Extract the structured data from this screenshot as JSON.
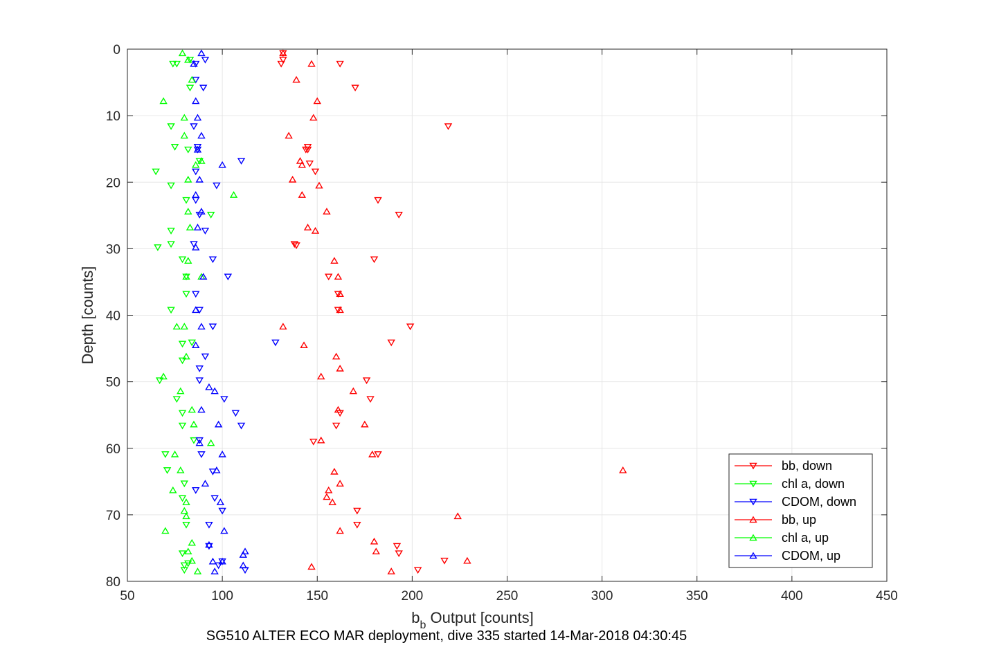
{
  "chart_data": {
    "type": "scatter",
    "xlabel_main": "b",
    "xlabel_sub": "b",
    "xlabel_rest": " Output [counts]",
    "ylabel": "Depth [counts]",
    "caption": "SG510 ALTER ECO MAR deployment, dive 335 started 14-Mar-2018 04:30:45",
    "xlim": [
      50,
      450
    ],
    "ylim": [
      0,
      80
    ],
    "y_reversed": true,
    "grid": true,
    "legend_position": "bottom-right",
    "xticks": [
      "50",
      "100",
      "150",
      "200",
      "250",
      "300",
      "350",
      "400",
      "450"
    ],
    "yticks": [
      "0",
      "10",
      "20",
      "30",
      "40",
      "50",
      "60",
      "70",
      "80"
    ],
    "series": [
      {
        "name": "bb, down",
        "color": "#ff0000",
        "marker": "triangle-down",
        "points": [
          [
            132,
            0.6
          ],
          [
            132,
            1.6
          ],
          [
            131,
            2.2
          ],
          [
            162,
            2.2
          ],
          [
            170,
            5.8
          ],
          [
            219,
            11.6
          ],
          [
            145,
            14.7
          ],
          [
            145,
            15.1
          ],
          [
            144,
            15.1
          ],
          [
            149,
            18.4
          ],
          [
            146,
            17.2
          ],
          [
            182,
            22.7
          ],
          [
            193,
            24.9
          ],
          [
            138,
            29.3
          ],
          [
            139,
            29.5
          ],
          [
            180,
            31.6
          ],
          [
            156,
            34.2
          ],
          [
            161,
            36.8
          ],
          [
            161,
            39.2
          ],
          [
            199,
            41.7
          ],
          [
            189,
            44.1
          ],
          [
            176,
            49.8
          ],
          [
            178,
            52.6
          ],
          [
            162,
            54.7
          ],
          [
            160,
            56.6
          ],
          [
            148,
            59.0
          ],
          [
            182,
            60.9
          ],
          [
            171,
            69.4
          ],
          [
            171,
            71.5
          ],
          [
            192,
            74.7
          ],
          [
            193,
            75.8
          ],
          [
            217,
            76.9
          ],
          [
            203,
            78.3
          ]
        ]
      },
      {
        "name": "chl a, down",
        "color": "#00ff00",
        "marker": "triangle-down",
        "points": [
          [
            83,
            1.6
          ],
          [
            74,
            2.2
          ],
          [
            76,
            2.2
          ],
          [
            83,
            5.8
          ],
          [
            73,
            11.6
          ],
          [
            75,
            14.7
          ],
          [
            82,
            15.1
          ],
          [
            88,
            16.8
          ],
          [
            65,
            18.4
          ],
          [
            73,
            20.5
          ],
          [
            81,
            22.7
          ],
          [
            94,
            24.9
          ],
          [
            73,
            27.3
          ],
          [
            73,
            29.3
          ],
          [
            66,
            29.8
          ],
          [
            79,
            31.6
          ],
          [
            81,
            34.2
          ],
          [
            81,
            36.8
          ],
          [
            73,
            39.2
          ],
          [
            84,
            44.1
          ],
          [
            79,
            44.3
          ],
          [
            79,
            46.8
          ],
          [
            67,
            49.8
          ],
          [
            76,
            52.6
          ],
          [
            79,
            54.7
          ],
          [
            79,
            56.6
          ],
          [
            85,
            58.8
          ],
          [
            70,
            60.9
          ],
          [
            71,
            63.3
          ],
          [
            80,
            65.3
          ],
          [
            79,
            67.5
          ],
          [
            81,
            71.5
          ],
          [
            79,
            75.8
          ],
          [
            82,
            77.3
          ],
          [
            80,
            77.6
          ],
          [
            80,
            78.3
          ]
        ]
      },
      {
        "name": "CDOM, down",
        "color": "#0000ff",
        "marker": "triangle-down",
        "points": [
          [
            91,
            1.6
          ],
          [
            86,
            2.2
          ],
          [
            86,
            4.6
          ],
          [
            90,
            5.8
          ],
          [
            85,
            11.6
          ],
          [
            87,
            14.7
          ],
          [
            87,
            15.1
          ],
          [
            110,
            16.8
          ],
          [
            86,
            18.4
          ],
          [
            97,
            20.5
          ],
          [
            86,
            22.7
          ],
          [
            88,
            24.9
          ],
          [
            91,
            27.3
          ],
          [
            85,
            29.3
          ],
          [
            95,
            31.6
          ],
          [
            103,
            34.2
          ],
          [
            86,
            36.8
          ],
          [
            88,
            39.2
          ],
          [
            95,
            41.7
          ],
          [
            128,
            44.1
          ],
          [
            91,
            46.2
          ],
          [
            88,
            48.0
          ],
          [
            88,
            49.8
          ],
          [
            101,
            52.6
          ],
          [
            107,
            54.7
          ],
          [
            110,
            56.6
          ],
          [
            88,
            58.8
          ],
          [
            89,
            60.9
          ],
          [
            95,
            63.5
          ],
          [
            86,
            66.3
          ],
          [
            96,
            67.5
          ],
          [
            100,
            69.4
          ],
          [
            93,
            71.5
          ],
          [
            93,
            74.7
          ],
          [
            100,
            77.0
          ],
          [
            98,
            77.6
          ],
          [
            112,
            78.3
          ]
        ]
      },
      {
        "name": "bb, up",
        "color": "#ff0000",
        "marker": "triangle-up",
        "points": [
          [
            132,
            0.6
          ],
          [
            147,
            2.2
          ],
          [
            139,
            4.6
          ],
          [
            150,
            7.8
          ],
          [
            148,
            10.3
          ],
          [
            135,
            13.0
          ],
          [
            141,
            16.8
          ],
          [
            142,
            17.4
          ],
          [
            137,
            19.6
          ],
          [
            151,
            20.5
          ],
          [
            142,
            21.9
          ],
          [
            155,
            24.4
          ],
          [
            145,
            26.8
          ],
          [
            149,
            27.3
          ],
          [
            159,
            31.8
          ],
          [
            161,
            34.2
          ],
          [
            162,
            36.8
          ],
          [
            162,
            39.2
          ],
          [
            132,
            41.7
          ],
          [
            143,
            44.5
          ],
          [
            160,
            46.2
          ],
          [
            162,
            48.0
          ],
          [
            152,
            49.2
          ],
          [
            169,
            51.4
          ],
          [
            161,
            54.2
          ],
          [
            175,
            56.4
          ],
          [
            152,
            58.8
          ],
          [
            179,
            60.9
          ],
          [
            311,
            63.3
          ],
          [
            159,
            63.5
          ],
          [
            162,
            65.3
          ],
          [
            156,
            66.3
          ],
          [
            155,
            67.3
          ],
          [
            158,
            68.1
          ],
          [
            224,
            70.2
          ],
          [
            162,
            72.4
          ],
          [
            180,
            74.0
          ],
          [
            181,
            75.5
          ],
          [
            229,
            76.9
          ],
          [
            147,
            77.8
          ],
          [
            189,
            78.5
          ]
        ]
      },
      {
        "name": "chl a, up",
        "color": "#00ff00",
        "marker": "triangle-up",
        "points": [
          [
            79,
            0.6
          ],
          [
            82,
            1.6
          ],
          [
            84,
            4.6
          ],
          [
            69,
            7.8
          ],
          [
            80,
            10.3
          ],
          [
            80,
            13.0
          ],
          [
            89,
            16.8
          ],
          [
            86,
            17.4
          ],
          [
            82,
            19.6
          ],
          [
            106,
            21.9
          ],
          [
            82,
            24.4
          ],
          [
            83,
            26.8
          ],
          [
            82,
            31.8
          ],
          [
            81,
            34.2
          ],
          [
            89,
            34.2
          ],
          [
            80,
            41.7
          ],
          [
            76,
            41.7
          ],
          [
            81,
            46.2
          ],
          [
            69,
            49.2
          ],
          [
            78,
            51.4
          ],
          [
            84,
            54.2
          ],
          [
            85,
            56.4
          ],
          [
            94,
            59.2
          ],
          [
            75,
            60.9
          ],
          [
            78,
            63.3
          ],
          [
            74,
            66.3
          ],
          [
            81,
            68.1
          ],
          [
            80,
            69.4
          ],
          [
            81,
            70.2
          ],
          [
            70,
            72.4
          ],
          [
            84,
            74.2
          ],
          [
            82,
            75.5
          ],
          [
            84,
            76.9
          ],
          [
            87,
            78.5
          ]
        ]
      },
      {
        "name": "CDOM, up",
        "color": "#0000ff",
        "marker": "triangle-up",
        "points": [
          [
            89,
            0.6
          ],
          [
            85,
            2.2
          ],
          [
            86,
            7.8
          ],
          [
            87,
            10.3
          ],
          [
            89,
            13.0
          ],
          [
            87,
            15.1
          ],
          [
            100,
            17.4
          ],
          [
            88,
            19.6
          ],
          [
            86,
            21.9
          ],
          [
            89,
            24.4
          ],
          [
            87,
            26.8
          ],
          [
            86,
            29.8
          ],
          [
            90,
            34.2
          ],
          [
            86,
            39.2
          ],
          [
            89,
            41.7
          ],
          [
            86,
            44.5
          ],
          [
            93,
            50.8
          ],
          [
            96,
            51.4
          ],
          [
            89,
            54.2
          ],
          [
            98,
            56.4
          ],
          [
            88,
            59.2
          ],
          [
            100,
            60.9
          ],
          [
            97,
            63.3
          ],
          [
            91,
            65.3
          ],
          [
            99,
            68.1
          ],
          [
            101,
            72.4
          ],
          [
            93,
            74.5
          ],
          [
            112,
            75.5
          ],
          [
            111,
            76.0
          ],
          [
            95,
            77.0
          ],
          [
            100,
            77.0
          ],
          [
            111,
            77.6
          ],
          [
            96,
            78.5
          ]
        ]
      }
    ]
  }
}
